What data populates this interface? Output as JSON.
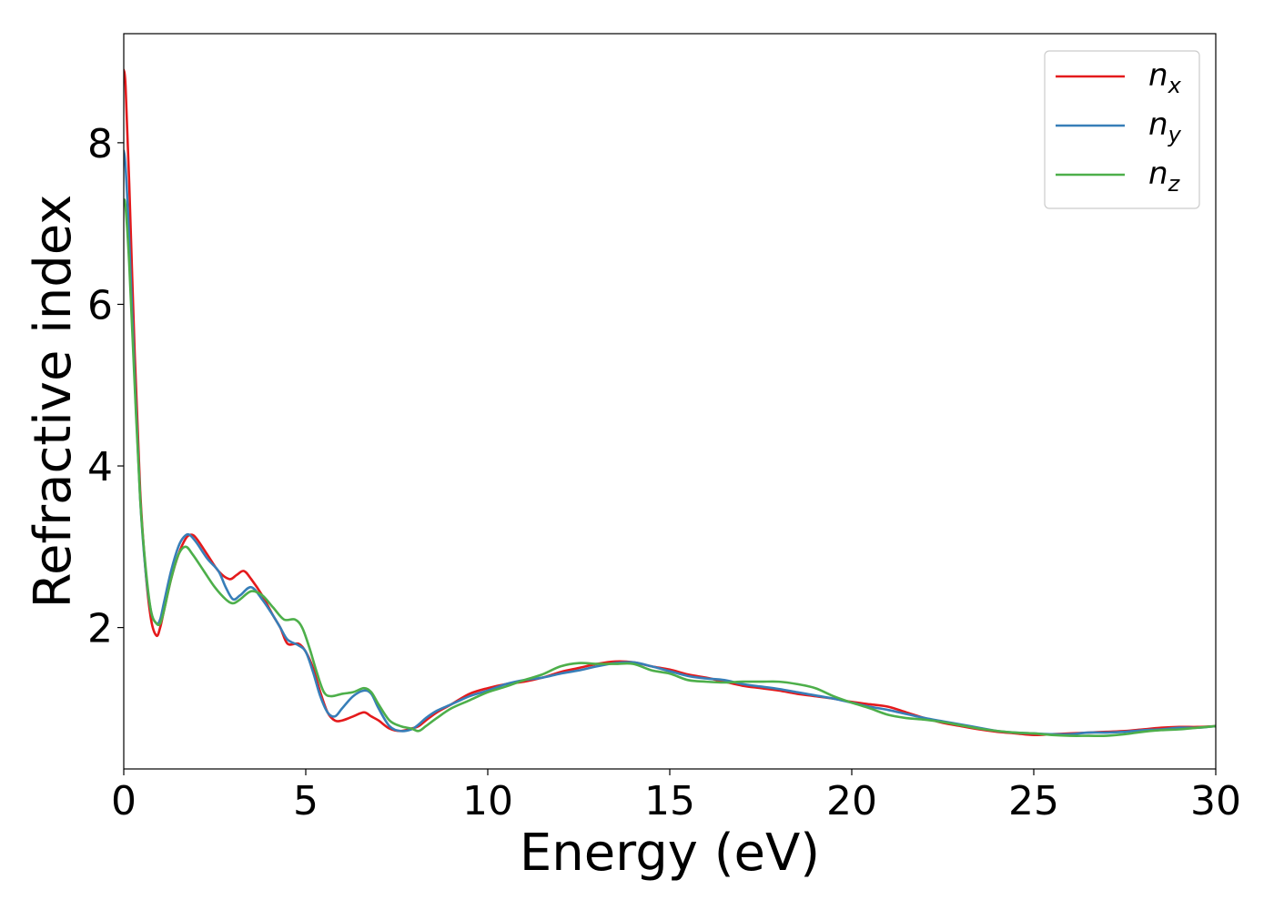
{
  "chart_data": {
    "type": "line",
    "xlabel": "Energy (eV)",
    "ylabel": "Refractive index",
    "xlim": [
      0,
      30
    ],
    "ylim": [
      0.25,
      9.35
    ],
    "xticks": [
      0,
      5,
      10,
      15,
      20,
      25,
      30
    ],
    "yticks": [
      2,
      4,
      6,
      8
    ],
    "grid": false,
    "legend_position": "top-right",
    "series": [
      {
        "name": "n",
        "subscript": "x",
        "color": "#e41a1c",
        "x": [
          0,
          0.05,
          0.15,
          0.3,
          0.45,
          0.6,
          0.75,
          0.9,
          1.0,
          1.1,
          1.3,
          1.5,
          1.7,
          1.85,
          2.0,
          2.3,
          2.6,
          2.9,
          3.1,
          3.3,
          3.5,
          3.8,
          4.1,
          4.3,
          4.5,
          4.8,
          5.0,
          5.2,
          5.4,
          5.6,
          5.8,
          6.0,
          6.3,
          6.6,
          6.8,
          7.0,
          7.3,
          7.6,
          7.9,
          8.1,
          8.3,
          8.6,
          9.0,
          9.5,
          10.0,
          10.5,
          11.0,
          11.5,
          12.0,
          12.5,
          13.0,
          13.5,
          14.0,
          14.5,
          15.0,
          15.5,
          16.0,
          16.5,
          17.0,
          17.5,
          18.0,
          18.5,
          19.0,
          19.5,
          20.0,
          20.5,
          21.0,
          21.5,
          22.0,
          22.5,
          23.0,
          23.5,
          24.0,
          24.5,
          25.0,
          25.5,
          26.0,
          26.5,
          27.0,
          27.5,
          28.0,
          28.5,
          29.0,
          29.5,
          30.0
        ],
        "y": [
          8.9,
          8.7,
          7.5,
          5.4,
          3.7,
          2.7,
          2.1,
          1.9,
          2.0,
          2.2,
          2.6,
          2.9,
          3.1,
          3.15,
          3.1,
          2.9,
          2.7,
          2.6,
          2.65,
          2.7,
          2.6,
          2.4,
          2.15,
          2.0,
          1.8,
          1.8,
          1.7,
          1.5,
          1.2,
          0.95,
          0.85,
          0.85,
          0.9,
          0.95,
          0.9,
          0.85,
          0.75,
          0.72,
          0.75,
          0.78,
          0.85,
          0.95,
          1.05,
          1.18,
          1.25,
          1.3,
          1.33,
          1.38,
          1.45,
          1.5,
          1.55,
          1.58,
          1.57,
          1.52,
          1.48,
          1.42,
          1.38,
          1.33,
          1.28,
          1.25,
          1.22,
          1.18,
          1.15,
          1.12,
          1.08,
          1.05,
          1.02,
          0.95,
          0.88,
          0.82,
          0.78,
          0.74,
          0.71,
          0.69,
          0.67,
          0.68,
          0.69,
          0.7,
          0.71,
          0.72,
          0.74,
          0.76,
          0.77,
          0.77,
          0.78
        ]
      },
      {
        "name": "n",
        "subscript": "y",
        "color": "#377eb8",
        "x": [
          0,
          0.05,
          0.15,
          0.3,
          0.45,
          0.6,
          0.75,
          0.9,
          1.0,
          1.1,
          1.3,
          1.5,
          1.65,
          1.8,
          2.0,
          2.3,
          2.6,
          2.8,
          3.0,
          3.2,
          3.5,
          3.8,
          4.1,
          4.3,
          4.5,
          4.8,
          5.0,
          5.2,
          5.4,
          5.6,
          5.8,
          6.0,
          6.3,
          6.6,
          6.8,
          7.0,
          7.3,
          7.6,
          7.9,
          8.1,
          8.3,
          8.6,
          9.0,
          9.5,
          10.0,
          10.5,
          11.0,
          11.5,
          12.0,
          12.5,
          13.0,
          13.5,
          14.0,
          14.5,
          15.0,
          15.5,
          16.0,
          16.5,
          17.0,
          17.5,
          18.0,
          18.5,
          19.0,
          19.5,
          20.0,
          20.5,
          21.0,
          21.5,
          22.0,
          22.5,
          23.0,
          23.5,
          24.0,
          24.5,
          25.0,
          25.5,
          26.0,
          26.5,
          27.0,
          27.5,
          28.0,
          28.5,
          29.0,
          29.5,
          30.0
        ],
        "y": [
          7.9,
          7.7,
          6.8,
          5.1,
          3.6,
          2.7,
          2.2,
          2.05,
          2.1,
          2.3,
          2.7,
          3.0,
          3.12,
          3.15,
          3.05,
          2.85,
          2.7,
          2.5,
          2.35,
          2.4,
          2.5,
          2.35,
          2.15,
          2.0,
          1.85,
          1.78,
          1.7,
          1.45,
          1.15,
          0.95,
          0.9,
          1.0,
          1.15,
          1.22,
          1.18,
          1.0,
          0.78,
          0.72,
          0.74,
          0.8,
          0.88,
          0.97,
          1.05,
          1.15,
          1.22,
          1.3,
          1.35,
          1.38,
          1.43,
          1.47,
          1.52,
          1.56,
          1.57,
          1.52,
          1.46,
          1.4,
          1.37,
          1.35,
          1.3,
          1.27,
          1.24,
          1.2,
          1.16,
          1.12,
          1.07,
          1.02,
          0.98,
          0.93,
          0.88,
          0.84,
          0.8,
          0.76,
          0.72,
          0.7,
          0.69,
          0.68,
          0.68,
          0.7,
          0.7,
          0.71,
          0.73,
          0.74,
          0.76,
          0.76,
          0.78
        ]
      },
      {
        "name": "n",
        "subscript": "z",
        "color": "#4daf4a",
        "x": [
          0,
          0.05,
          0.15,
          0.3,
          0.45,
          0.6,
          0.75,
          0.9,
          1.0,
          1.1,
          1.3,
          1.5,
          1.7,
          1.9,
          2.2,
          2.5,
          2.8,
          3.0,
          3.2,
          3.5,
          3.8,
          4.1,
          4.4,
          4.7,
          4.9,
          5.1,
          5.3,
          5.5,
          5.7,
          6.0,
          6.3,
          6.6,
          6.8,
          7.0,
          7.3,
          7.6,
          7.9,
          8.1,
          8.3,
          8.6,
          9.0,
          9.5,
          10.0,
          10.5,
          11.0,
          11.5,
          12.0,
          12.5,
          13.0,
          13.5,
          14.0,
          14.5,
          15.0,
          15.5,
          16.0,
          16.5,
          17.0,
          17.5,
          18.0,
          18.5,
          19.0,
          19.5,
          20.0,
          20.5,
          21.0,
          21.5,
          22.0,
          22.5,
          23.0,
          23.5,
          24.0,
          24.5,
          25.0,
          25.5,
          26.0,
          26.5,
          27.0,
          27.5,
          28.0,
          28.5,
          29.0,
          29.5,
          30.0
        ],
        "y": [
          7.3,
          7.2,
          6.5,
          5.0,
          3.6,
          2.75,
          2.2,
          2.05,
          2.05,
          2.2,
          2.6,
          2.9,
          3.0,
          2.9,
          2.7,
          2.5,
          2.35,
          2.3,
          2.35,
          2.45,
          2.4,
          2.25,
          2.1,
          2.1,
          2.0,
          1.75,
          1.45,
          1.2,
          1.15,
          1.18,
          1.2,
          1.25,
          1.2,
          1.05,
          0.85,
          0.78,
          0.75,
          0.72,
          0.78,
          0.88,
          1.0,
          1.1,
          1.2,
          1.27,
          1.35,
          1.42,
          1.52,
          1.56,
          1.55,
          1.55,
          1.55,
          1.47,
          1.43,
          1.35,
          1.33,
          1.32,
          1.33,
          1.33,
          1.33,
          1.3,
          1.25,
          1.15,
          1.07,
          1.0,
          0.92,
          0.88,
          0.86,
          0.83,
          0.79,
          0.75,
          0.72,
          0.7,
          0.69,
          0.67,
          0.66,
          0.66,
          0.66,
          0.68,
          0.71,
          0.73,
          0.74,
          0.76,
          0.78
        ]
      }
    ]
  }
}
